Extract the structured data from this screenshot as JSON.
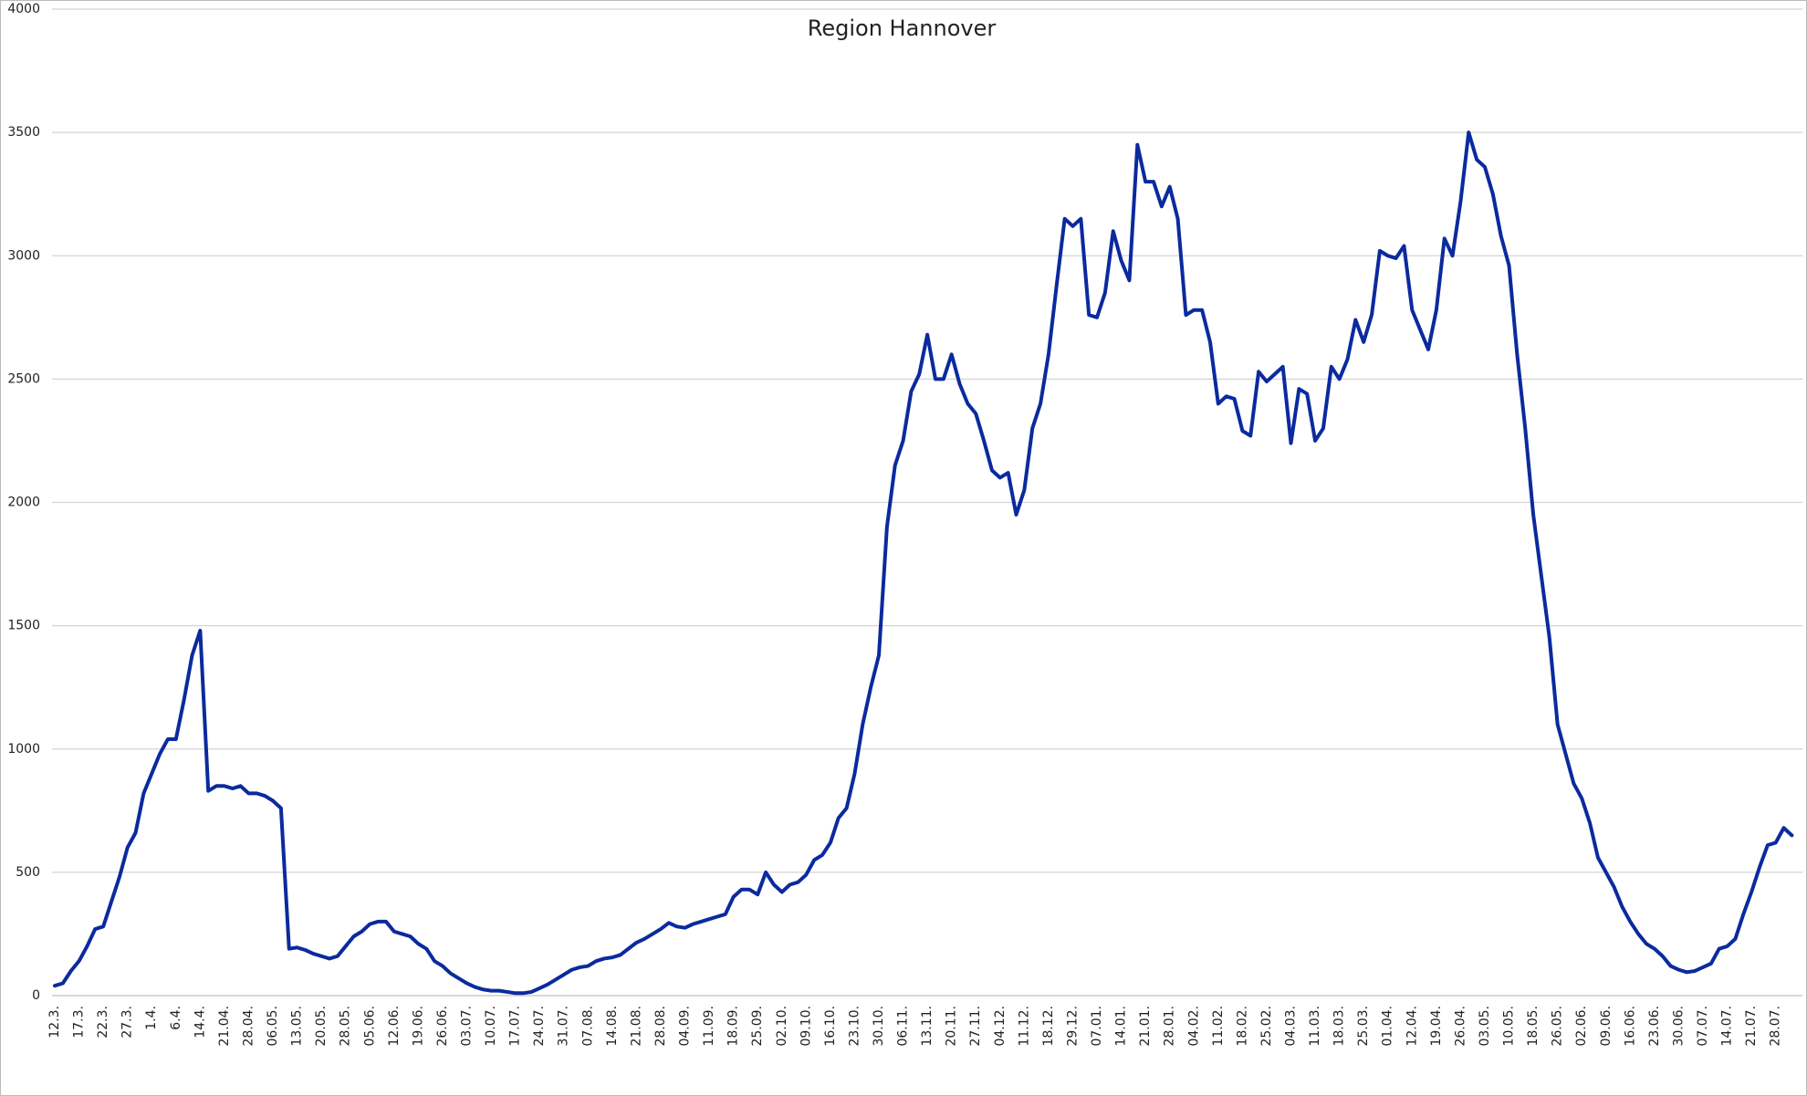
{
  "chart_data": {
    "type": "line",
    "title": "Region Hannover",
    "categories": [
      "12.3.",
      null,
      null,
      "17.3.",
      null,
      null,
      "22.3.",
      null,
      null,
      "27.3.",
      null,
      null,
      "1.4.",
      null,
      null,
      "6.4.",
      null,
      null,
      "14.4.",
      null,
      null,
      "21.04.",
      null,
      null,
      "28.04.",
      null,
      null,
      "06.05.",
      null,
      null,
      "13.05.",
      null,
      null,
      "20.05.",
      null,
      null,
      "28.05.",
      null,
      null,
      "05.06.",
      null,
      null,
      "12.06.",
      null,
      null,
      "19.06.",
      null,
      null,
      "26.06.",
      null,
      null,
      "03.07.",
      null,
      null,
      "10.07.",
      null,
      null,
      "17.07.",
      null,
      null,
      "24.07.",
      null,
      null,
      "31.07.",
      null,
      null,
      "07.08.",
      null,
      null,
      "14.08.",
      null,
      null,
      "21.08.",
      null,
      null,
      "28.08.",
      null,
      null,
      "04.09.",
      null,
      null,
      "11.09.",
      null,
      null,
      "18.09.",
      null,
      null,
      "25.09.",
      null,
      null,
      "02.10.",
      null,
      null,
      "09.10.",
      null,
      null,
      "16.10.",
      null,
      null,
      "23.10.",
      null,
      null,
      "30.10.",
      null,
      null,
      "06.11.",
      null,
      null,
      "13.11.",
      null,
      null,
      "20.11.",
      null,
      null,
      "27.11.",
      null,
      null,
      "04.12.",
      null,
      null,
      "11.12.",
      null,
      null,
      "18.12.",
      null,
      null,
      "29.12.",
      null,
      null,
      "07.01.",
      null,
      null,
      "14.01.",
      null,
      null,
      "21.01.",
      null,
      null,
      "28.01.",
      null,
      null,
      "04.02.",
      null,
      null,
      "11.02.",
      null,
      null,
      "18.02.",
      null,
      null,
      "25.02.",
      null,
      null,
      "04.03.",
      null,
      null,
      "11.03.",
      null,
      null,
      "18.03.",
      null,
      null,
      "25.03.",
      null,
      null,
      "01.04.",
      null,
      null,
      "12.04.",
      null,
      null,
      "19.04.",
      null,
      null,
      "26.04.",
      null,
      null,
      "03.05.",
      null,
      null,
      "10.05.",
      null,
      null,
      "18.05.",
      null,
      null,
      "26.05.",
      null,
      null,
      "02.06.",
      null,
      null,
      "09.06.",
      null,
      null,
      "16.06.",
      null,
      null,
      "23.06.",
      null,
      null,
      "30.06.",
      null,
      null,
      "07.07.",
      null,
      null,
      "14.07.",
      null,
      null,
      "21.07.",
      null,
      null,
      "28.07.",
      null,
      null
    ],
    "values": [
      40,
      50,
      100,
      140,
      200,
      270,
      280,
      380,
      480,
      600,
      660,
      820,
      900,
      980,
      1040,
      1040,
      1200,
      1380,
      1480,
      830,
      850,
      850,
      840,
      850,
      820,
      820,
      810,
      790,
      760,
      190,
      195,
      185,
      170,
      160,
      150,
      160,
      200,
      240,
      260,
      290,
      300,
      300,
      260,
      250,
      240,
      210,
      190,
      140,
      120,
      90,
      70,
      50,
      35,
      25,
      20,
      20,
      15,
      10,
      10,
      15,
      30,
      45,
      65,
      85,
      105,
      115,
      120,
      140,
      150,
      155,
      165,
      190,
      215,
      230,
      250,
      270,
      295,
      280,
      275,
      290,
      300,
      310,
      320,
      330,
      400,
      430,
      430,
      410,
      500,
      450,
      420,
      450,
      460,
      490,
      550,
      570,
      620,
      720,
      760,
      900,
      1100,
      1250,
      1380,
      1900,
      2150,
      2250,
      2450,
      2520,
      2680,
      2500,
      2500,
      2600,
      2480,
      2400,
      2360,
      2250,
      2130,
      2100,
      2120,
      1950,
      2050,
      2300,
      2400,
      2600,
      2880,
      3150,
      3120,
      3150,
      2760,
      2750,
      2850,
      3100,
      2980,
      2900,
      3450,
      3300,
      3300,
      3200,
      3280,
      3150,
      2760,
      2780,
      2780,
      2650,
      2400,
      2430,
      2420,
      2290,
      2270,
      2530,
      2490,
      2520,
      2550,
      2240,
      2460,
      2440,
      2250,
      2300,
      2550,
      2500,
      2580,
      2740,
      2650,
      2760,
      3020,
      3000,
      2990,
      3040,
      2780,
      2700,
      2620,
      2780,
      3070,
      3000,
      3220,
      3500,
      3390,
      3360,
      3250,
      3080,
      2960,
      2600,
      2300,
      1950,
      1700,
      1450,
      1100,
      980,
      860,
      800,
      700,
      560,
      500,
      440,
      360,
      300,
      250,
      210,
      190,
      160,
      120,
      105,
      95,
      100,
      115,
      130,
      190,
      200,
      230,
      330,
      420,
      520,
      610,
      620,
      680,
      650
    ],
    "color": "#0b2a9e",
    "ylim": [
      0,
      4000
    ],
    "yticks": [
      0,
      500,
      1000,
      1500,
      2000,
      2500,
      3000,
      3500,
      4000
    ],
    "grid": true
  }
}
